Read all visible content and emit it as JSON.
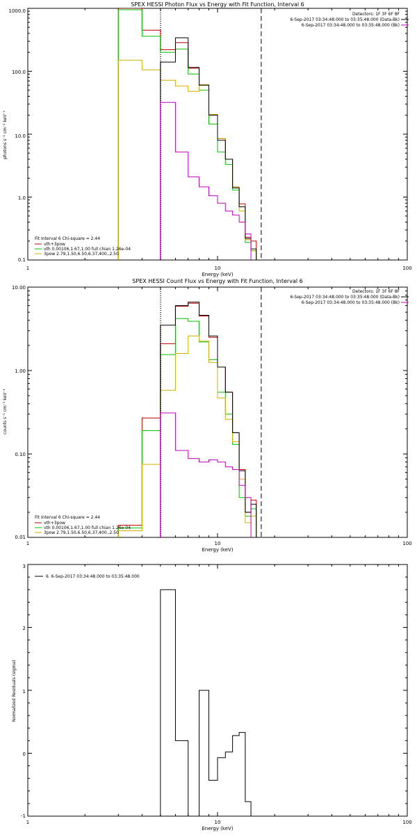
{
  "chart_data": [
    {
      "type": "line",
      "title": "SPEX HESSI Photon Flux vs Energy with Fit Function, Interval 6",
      "xlabel": "Energy (keV)",
      "ylabel": "photons s⁻¹ cm⁻² keV⁻¹",
      "xscale": "log",
      "yscale": "log",
      "xlim": [
        1,
        100
      ],
      "ylim": [
        0.1,
        1000
      ],
      "xticks": [
        "1",
        "10",
        "100"
      ],
      "yticks": [
        "0.1",
        "1.0",
        "10.0",
        "100.0",
        "1000.0"
      ],
      "yticks_vals": [
        0.1,
        1,
        10,
        100,
        1000
      ],
      "vlines": [
        {
          "x": 5.0,
          "style": "dotted",
          "color": "#000000"
        },
        {
          "x": 5.0,
          "style": "dotted",
          "color": "#c000c0"
        },
        {
          "x": 17.0,
          "style": "dashed",
          "color": "#000000"
        }
      ],
      "legend_top": [
        "Detectors: 1F 3F 6F 8F",
        "6-Sep-2017 03:34:48.000 to 03:35:48.000 (Data-Bk)",
        "6-Sep-2017 03:34:48.000 to 03:35:48.000 (Bk)"
      ],
      "legend_top_colors": [
        "",
        "#000000",
        "#c000c0"
      ],
      "legend_bottom": [
        "Fit Interval 6   Chi-square = 2.44",
        "vth+3pow",
        "vth 0.00106,1.67,1.00  full chian 1.26e-04",
        "3pow 2.79,1.50,6.50,6.37,400.,2.50"
      ],
      "legend_bottom_colors": [
        "",
        "#c00000",
        "#00c000",
        "#d0b000"
      ],
      "edges": [
        3,
        4,
        5,
        6,
        7,
        8,
        9,
        10,
        11,
        12,
        13,
        14,
        15,
        16,
        17,
        18
      ],
      "series": [
        {
          "name": "vth+3pow",
          "color": "#c00000",
          "values": [
            1000,
            450,
            220,
            285,
            112,
            61,
            20.5,
            8.5,
            4.0,
            1.45,
            0.78,
            0.23,
            0.2,
            null,
            null
          ]
        },
        {
          "name": "vth 0.00106,1.67,1.00  full chian 1.26e-04",
          "color": "#00c000",
          "values": [
            950,
            360,
            200,
            225,
            90,
            50,
            14.5,
            5.2,
            3.3,
            1.3,
            0.7,
            0.19,
            0.14,
            null,
            null
          ]
        },
        {
          "name": "3pow 2.79,1.50,6.50,6.37,400.,2.50",
          "color": "#d0b000",
          "values": [
            150,
            105,
            72,
            58,
            48,
            61,
            20.5,
            8.5,
            4.0,
            1.45,
            0.6,
            0.21,
            0.14,
            null,
            null
          ]
        },
        {
          "name": "6-Sep-2017 03:34:48.000 to 03:35:48.000 (Data-Bk)",
          "color": "#000000",
          "values": [
            null,
            null,
            140,
            340,
            115,
            60,
            20,
            8.0,
            4.0,
            1.4,
            0.7,
            0.22,
            0.15,
            null,
            null
          ]
        },
        {
          "name": "6-Sep-2017 03:34:48.000 to 03:35:48.000 (Bk)",
          "color": "#c000c0",
          "values": [
            null,
            null,
            32,
            5.2,
            2.1,
            1.45,
            1.05,
            0.8,
            0.6,
            0.52,
            0.4,
            0.26,
            null,
            null,
            null
          ]
        }
      ]
    },
    {
      "type": "line",
      "title": "SPEX HESSI Count Flux vs Energy with Fit Function, Interval 6",
      "xlabel": "Energy (keV)",
      "ylabel": "counts s⁻¹ cm⁻² keV⁻¹",
      "xscale": "log",
      "yscale": "log",
      "xlim": [
        1,
        100
      ],
      "ylim": [
        0.01,
        10
      ],
      "xticks": [
        "1",
        "10",
        "100"
      ],
      "yticks": [
        "0.01",
        "0.10",
        "1.00",
        "10.00"
      ],
      "yticks_vals": [
        0.01,
        0.1,
        1,
        10
      ],
      "vlines": [
        {
          "x": 5.0,
          "style": "dotted",
          "color": "#000000"
        },
        {
          "x": 5.0,
          "style": "dotted",
          "color": "#c000c0"
        },
        {
          "x": 17.0,
          "style": "dashed",
          "color": "#000000"
        }
      ],
      "legend_top": [
        "Detectors: 1F 3F 6F 8F",
        "6-Sep-2017 03:34:48.000 to 03:35:48.000 (Data-Bk)",
        "6-Sep-2017 03:34:48.000 to 03:35:48.000 (Bk)"
      ],
      "legend_top_colors": [
        "",
        "#000000",
        "#c000c0"
      ],
      "legend_bottom": [
        "Fit Interval 6   Chi-square = 2.44",
        "vth+3pow",
        "vth 0.00106,1.67,1.00  full chian 1.26e-04",
        "3pow 2.79,1.50,6.50,6.37,400.,2.50"
      ],
      "legend_bottom_colors": [
        "",
        "#c00000",
        "#00c000",
        "#d0b000"
      ],
      "edges": [
        3,
        4,
        5,
        6,
        7,
        8,
        9,
        10,
        11,
        12,
        13,
        14,
        15,
        16,
        17,
        18
      ],
      "series": [
        {
          "name": "vth+3pow",
          "color": "#c00000",
          "values": [
            0.014,
            0.27,
            2.1,
            5.9,
            6.4,
            4.5,
            2.5,
            1.1,
            0.55,
            0.18,
            0.065,
            0.02,
            0.028,
            0.01,
            0.01
          ]
        },
        {
          "name": "vth 0.00106,1.67,1.00  full chian 1.26e-04",
          "color": "#00c000",
          "values": [
            0.013,
            0.19,
            1.55,
            4.2,
            3.9,
            2.2,
            1.35,
            0.55,
            0.3,
            0.13,
            0.03,
            0.018,
            0.022,
            0.01,
            0.01
          ]
        },
        {
          "name": "3pow 2.79,1.50,6.50,6.37,400.,2.50",
          "color": "#d0b000",
          "values": [
            0.012,
            0.075,
            0.58,
            1.6,
            2.6,
            2.25,
            1.25,
            0.47,
            0.26,
            0.14,
            0.05,
            0.015,
            0.018,
            0.01,
            0.01
          ]
        },
        {
          "name": "6-Sep-2017 03:34:48.000 to 03:35:48.000 (Data-Bk)",
          "color": "#000000",
          "values": [
            null,
            null,
            3.5,
            6.0,
            6.6,
            4.6,
            2.6,
            1.1,
            0.55,
            0.18,
            0.063,
            0.02,
            0.025,
            0.01,
            0.01
          ]
        },
        {
          "name": "6-Sep-2017 03:34:48.000 to 03:35:48.000 (Bk)",
          "color": "#c000c0",
          "values": [
            null,
            null,
            0.31,
            0.11,
            0.088,
            0.08,
            0.085,
            0.08,
            0.07,
            0.065,
            0.042,
            0.03,
            null,
            null,
            null
          ]
        }
      ]
    },
    {
      "type": "line",
      "title": "",
      "xlabel": "Energy (keV)",
      "ylabel": "Normalized Residuals (sigma)",
      "xscale": "log",
      "yscale": "linear",
      "xlim": [
        1,
        100
      ],
      "ylim": [
        -1,
        3
      ],
      "xticks": [
        "1",
        "10",
        "100"
      ],
      "yticks": [
        "-1",
        "0",
        "1",
        "2",
        "3"
      ],
      "yticks_vals": [
        -1,
        0,
        1,
        2,
        3
      ],
      "legend_top": [
        "6.  6-Sep-2017 03:34:48.000 to 03:35:48.000"
      ],
      "edges": [
        5,
        6,
        7,
        8,
        9,
        10,
        11,
        12,
        13,
        14,
        15,
        16
      ],
      "series": [
        {
          "name": "6.  6-Sep-2017 03:34:48.000 to 03:35:48.000",
          "color": "#000000",
          "values": [
            2.6,
            0.2,
            -1.05,
            1.0,
            -0.43,
            -0.07,
            0.02,
            0.28,
            0.33,
            -0.77,
            -1.05
          ]
        }
      ]
    }
  ]
}
